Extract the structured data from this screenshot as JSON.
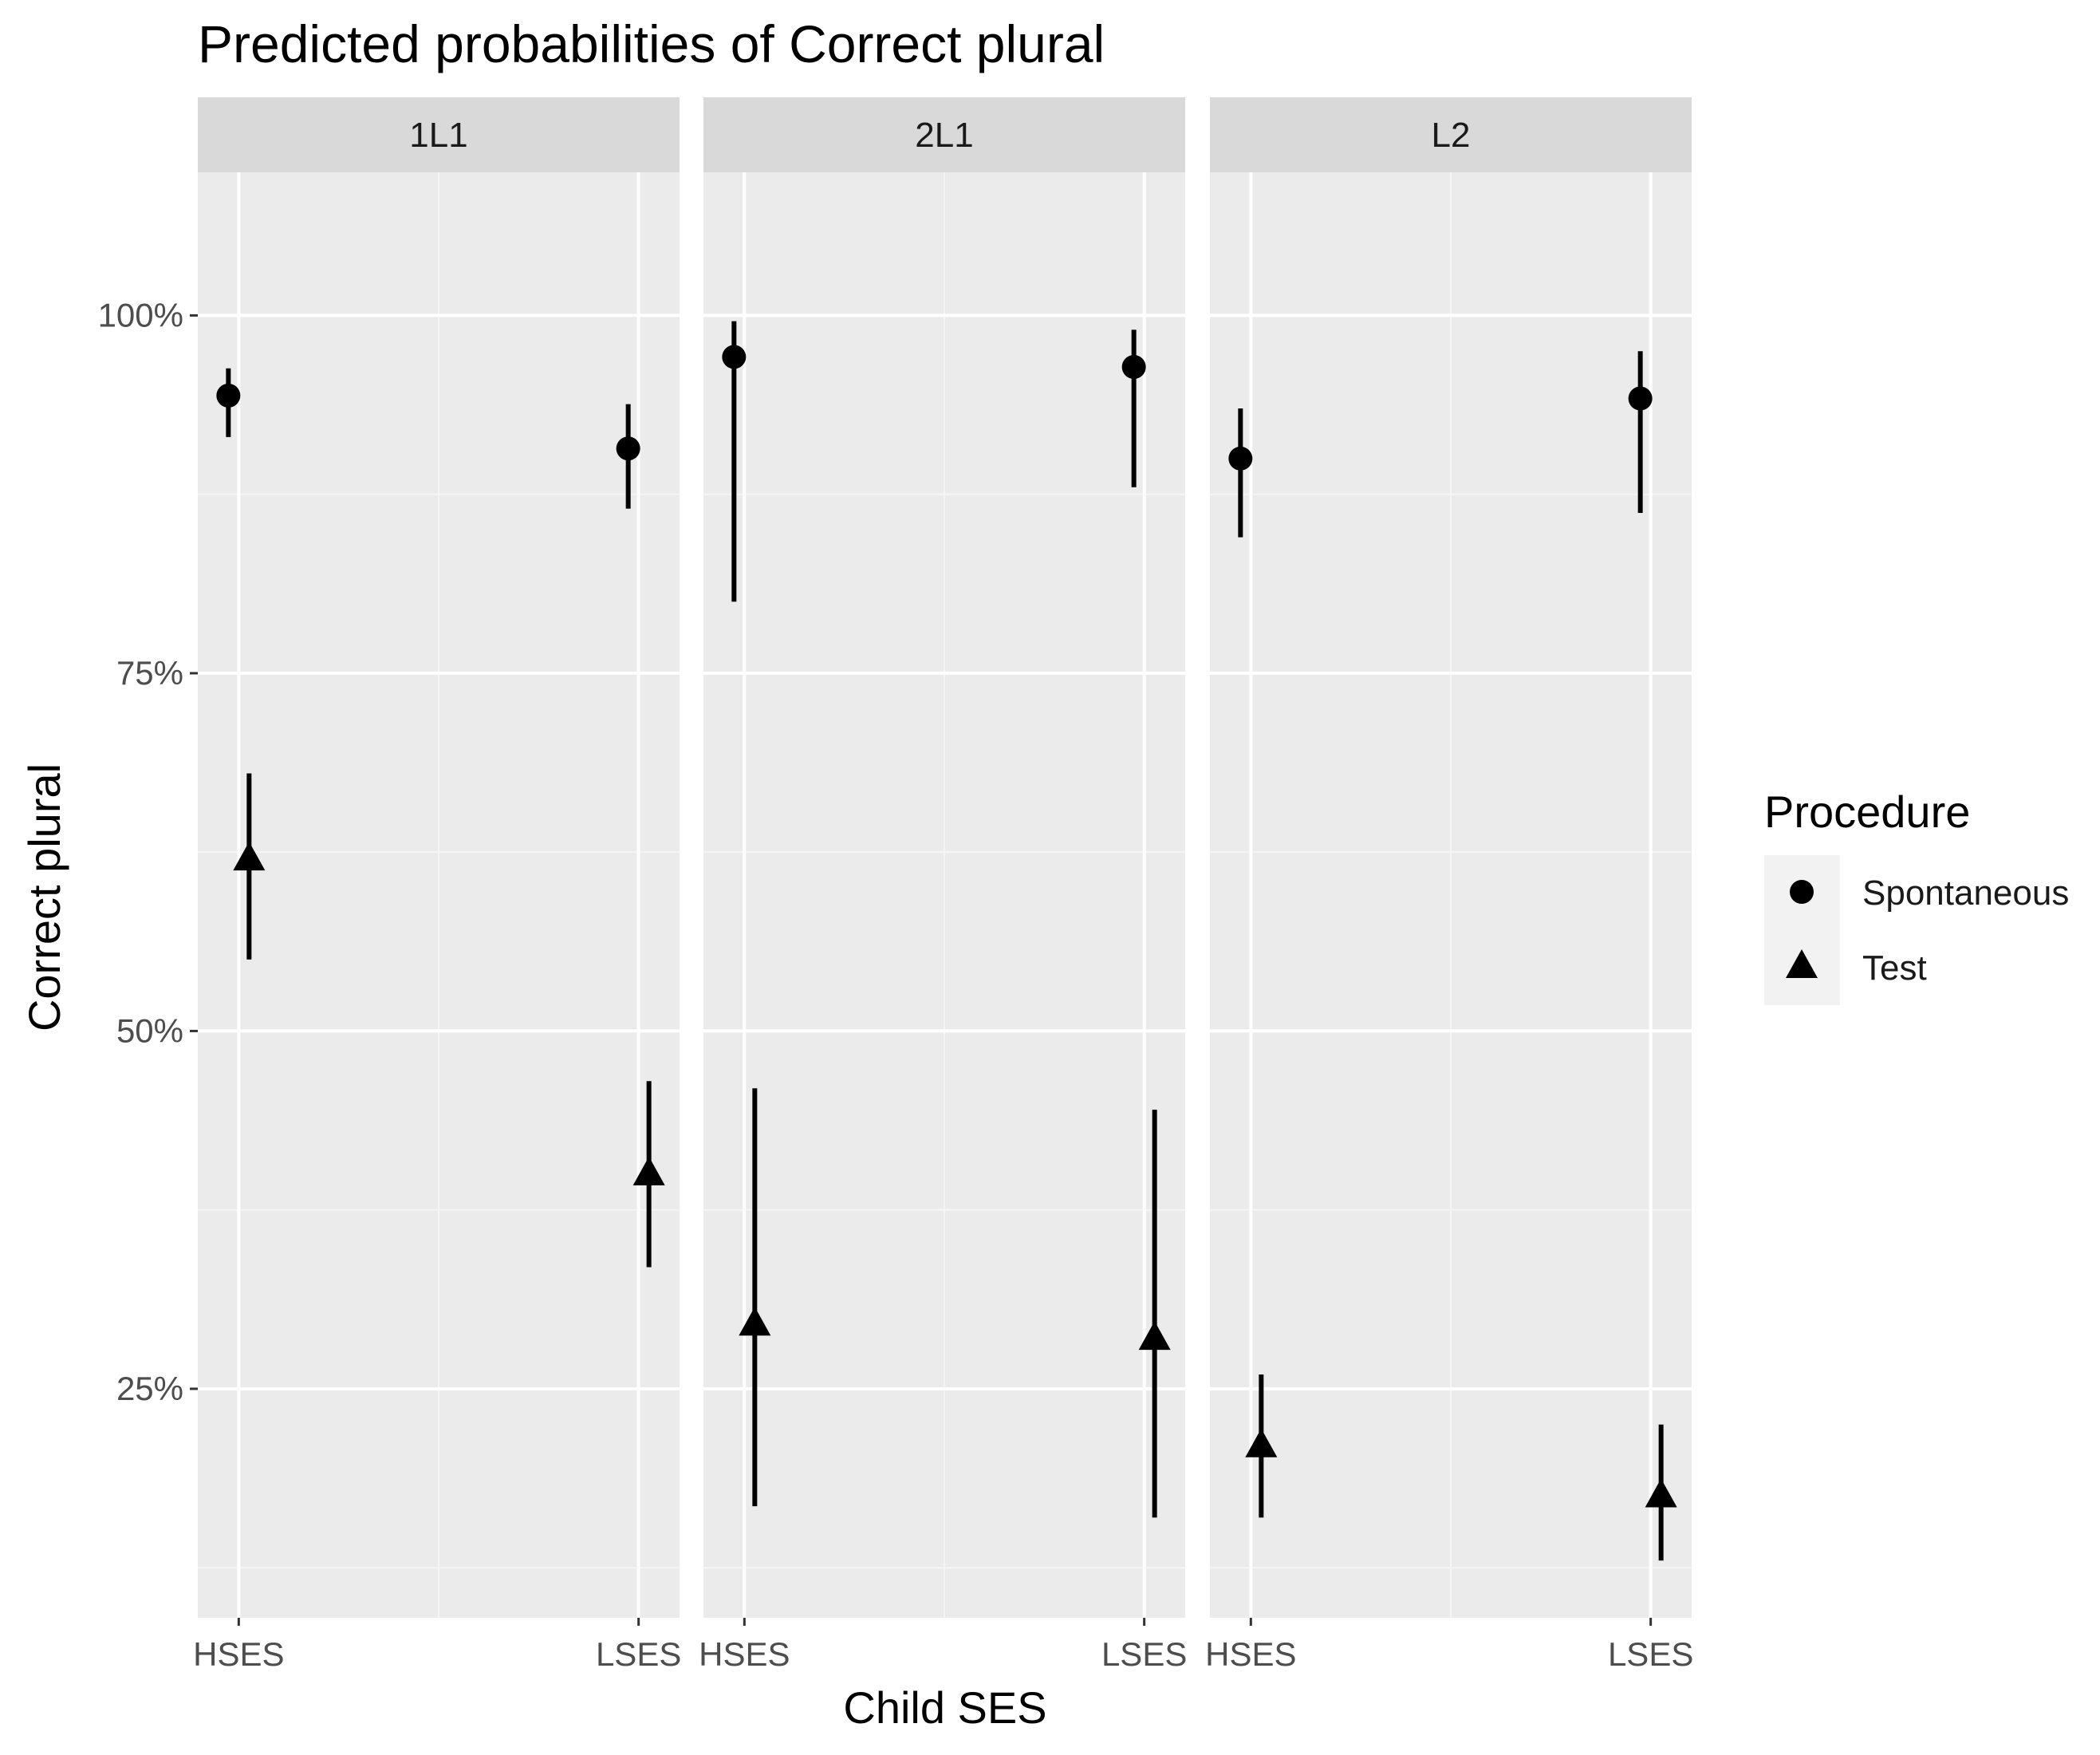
{
  "chart_data": {
    "type": "scatter",
    "title": "Predicted probabilities of Correct plural",
    "xlabel": "Child SES",
    "ylabel": "Correct plural",
    "categories": [
      "HSES",
      "LSES"
    ],
    "ylim": [
      0.09,
      1.1
    ],
    "y_ticks": [
      {
        "value": 0.25,
        "label": "25%"
      },
      {
        "value": 0.5,
        "label": "50%"
      },
      {
        "value": 0.75,
        "label": "75%"
      },
      {
        "value": 1.0,
        "label": "100%"
      }
    ],
    "legend": {
      "title": "Procedure",
      "position": "right"
    },
    "series": [
      {
        "name": "Spontaneous",
        "shape": "circle"
      },
      {
        "name": "Test",
        "shape": "triangle"
      }
    ],
    "panels": [
      {
        "label": "1L1",
        "points": [
          {
            "series": "Spontaneous",
            "x": "HSES",
            "y": 0.944,
            "lower": 0.915,
            "upper": 0.963
          },
          {
            "series": "Spontaneous",
            "x": "LSES",
            "y": 0.907,
            "lower": 0.865,
            "upper": 0.938
          },
          {
            "series": "Test",
            "x": "HSES",
            "y": 0.62,
            "lower": 0.55,
            "upper": 0.68
          },
          {
            "series": "Test",
            "x": "LSES",
            "y": 0.4,
            "lower": 0.335,
            "upper": 0.465
          }
        ]
      },
      {
        "label": "2L1",
        "points": [
          {
            "series": "Spontaneous",
            "x": "HSES",
            "y": 0.971,
            "lower": 0.8,
            "upper": 0.996
          },
          {
            "series": "Spontaneous",
            "x": "LSES",
            "y": 0.964,
            "lower": 0.88,
            "upper": 0.99
          },
          {
            "series": "Test",
            "x": "HSES",
            "y": 0.295,
            "lower": 0.168,
            "upper": 0.46
          },
          {
            "series": "Test",
            "x": "LSES",
            "y": 0.285,
            "lower": 0.16,
            "upper": 0.445
          }
        ]
      },
      {
        "label": "L2",
        "points": [
          {
            "series": "Spontaneous",
            "x": "HSES",
            "y": 0.9,
            "lower": 0.845,
            "upper": 0.935
          },
          {
            "series": "Spontaneous",
            "x": "LSES",
            "y": 0.942,
            "lower": 0.862,
            "upper": 0.975
          },
          {
            "series": "Test",
            "x": "HSES",
            "y": 0.21,
            "lower": 0.16,
            "upper": 0.26
          },
          {
            "series": "Test",
            "x": "LSES",
            "y": 0.175,
            "lower": 0.13,
            "upper": 0.225
          }
        ]
      }
    ]
  }
}
